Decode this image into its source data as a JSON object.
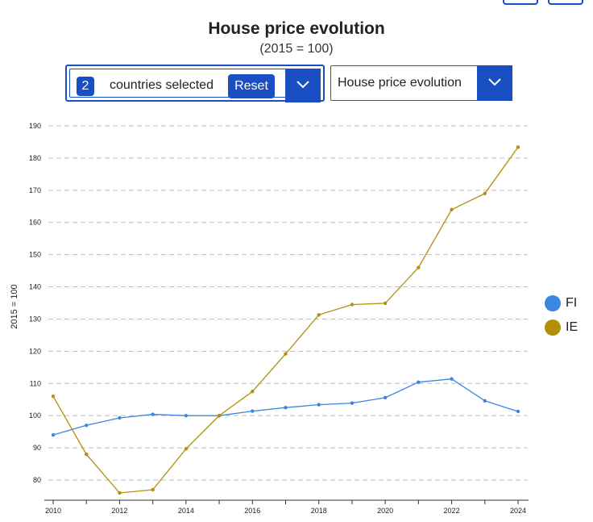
{
  "header": {
    "title": "House price evolution",
    "subtitle": "(2015 = 100)"
  },
  "country_selector": {
    "count": "2",
    "label": "countries selected",
    "reset_label": "Reset"
  },
  "indicator_dropdown": {
    "selected": "House price evolution"
  },
  "icons": {
    "selector_toggle": "chevron-down-icon",
    "dropdown_toggle": "chevron-down-icon"
  },
  "colors": {
    "accent": "#1a4fc4",
    "FI": "#3b86e0",
    "IE": "#b38f0a"
  },
  "chart_data": {
    "type": "line",
    "title": "House price evolution",
    "subtitle": "(2015 = 100)",
    "xlabel": "",
    "ylabel": "2015 = 100",
    "xlim": [
      2010,
      2024
    ],
    "ylim": [
      75,
      192
    ],
    "y_ticks": [
      80,
      90,
      100,
      110,
      120,
      130,
      140,
      150,
      160,
      170,
      180,
      190
    ],
    "x_ticks": [
      2010,
      2012,
      2014,
      2016,
      2018,
      2020,
      2022,
      2024
    ],
    "grid": "horizontal dashed",
    "legend": "right",
    "x": [
      2010,
      2011,
      2012,
      2013,
      2014,
      2015,
      2016,
      2017,
      2018,
      2019,
      2020,
      2021,
      2022,
      2023,
      2024
    ],
    "series": [
      {
        "name": "FI",
        "color": "#3b86e0",
        "values": [
          94,
          97,
          99.3,
          100.4,
          100,
          100,
          101.4,
          102.5,
          103.4,
          103.9,
          105.6,
          110.4,
          111.4,
          104.6,
          101.3
        ]
      },
      {
        "name": "IE",
        "color": "#b38f0a",
        "values": [
          106,
          88,
          76,
          77,
          89.7,
          100,
          107.5,
          119.2,
          131.3,
          134.5,
          134.9,
          146,
          164,
          169,
          183.4
        ]
      }
    ]
  }
}
